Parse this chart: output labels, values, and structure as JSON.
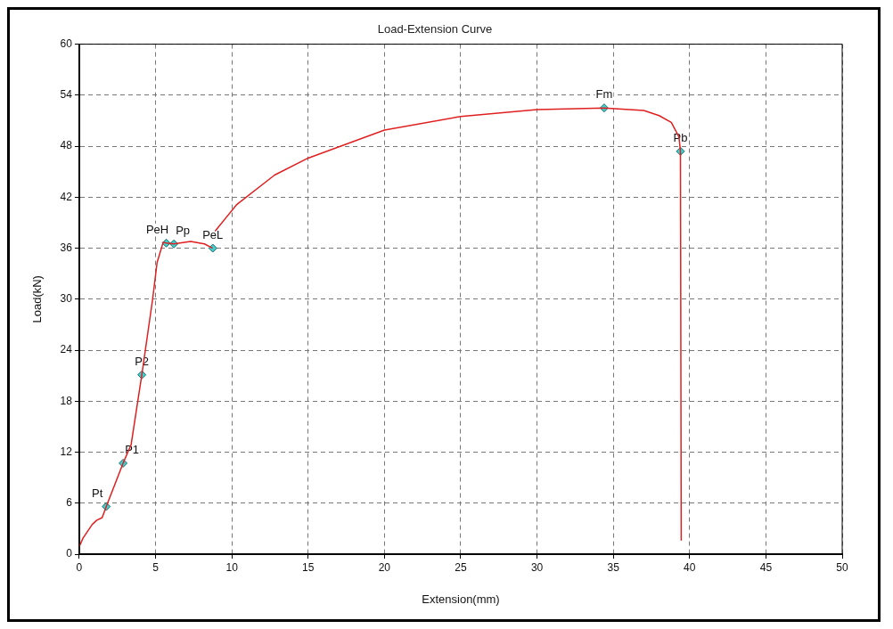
{
  "chart_data": {
    "type": "line",
    "title": "Load-Extension Curve",
    "xlabel": "Extension(mm)",
    "ylabel": "Load(kN)",
    "xlim": [
      0,
      50
    ],
    "xticks": [
      0,
      5,
      10,
      15,
      20,
      25,
      30,
      35,
      40,
      45,
      50
    ],
    "ylim": [
      0,
      60
    ],
    "yticks": [
      0,
      6,
      12,
      18,
      24,
      30,
      36,
      42,
      48,
      54,
      60
    ],
    "grid": true,
    "legend": false,
    "line_style": "solid",
    "series": [
      {
        "type": "line",
        "color": "#e02020",
        "marker": "none",
        "x": [
          0,
          0.25,
          0.85,
          1.15,
          1.5,
          1.77,
          2.87,
          3.4,
          4.1,
          4.8,
          5.1,
          5.5,
          5.7,
          6.2,
          7.3,
          8.2,
          8.75,
          8.8,
          8.9,
          10.3,
          12.8,
          15,
          20,
          25,
          30,
          34.4,
          37,
          38,
          38.8,
          39.3,
          39.4,
          39.45
        ],
        "values": [
          0.9,
          1.9,
          3.5,
          4.0,
          4.3,
          5.6,
          10.7,
          12.9,
          21.1,
          29.9,
          34.3,
          36.7,
          36.6,
          36.5,
          36.8,
          36.5,
          36.0,
          null,
          38.0,
          41.1,
          44.6,
          46.6,
          49.9,
          51.5,
          52.3,
          52.5,
          52.2,
          51.6,
          50.8,
          49.1,
          47.4,
          1.6
        ]
      },
      {
        "type": "scatter",
        "color": "#40d0d0",
        "marker": "diamond",
        "x": [
          1.77,
          2.87,
          4.1,
          5.7,
          6.2,
          8.75,
          34.4,
          39.4
        ],
        "values": [
          5.6,
          10.7,
          21.1,
          36.6,
          36.5,
          36.0,
          52.5,
          47.4
        ]
      }
    ],
    "annotations": [
      {
        "text": "Pt",
        "x": 1.77,
        "y": 5.6
      },
      {
        "text": "P1",
        "x": 2.87,
        "y": 10.7
      },
      {
        "text": "P2",
        "x": 4.1,
        "y": 21.1
      },
      {
        "text": "PeH",
        "x": 5.7,
        "y": 36.6
      },
      {
        "text": "Pp",
        "x": 6.2,
        "y": 36.5
      },
      {
        "text": "PeL",
        "x": 8.75,
        "y": 36.0
      },
      {
        "text": "Fm",
        "x": 34.4,
        "y": 52.5
      },
      {
        "text": "Pb",
        "x": 39.4,
        "y": 47.4
      }
    ]
  }
}
